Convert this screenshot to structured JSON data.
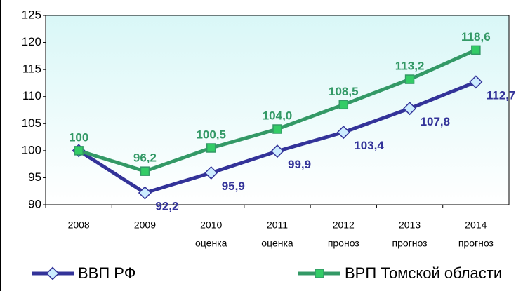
{
  "chart_data": {
    "type": "line",
    "categories": [
      "2008",
      "2009",
      "2010",
      "2011",
      "2012",
      "2013",
      "2014"
    ],
    "category_notes": [
      null,
      null,
      "оценка",
      "оценка",
      "проноз",
      "прогноз",
      "прогноз"
    ],
    "ylim": [
      90,
      125
    ],
    "yticks": [
      90,
      95,
      100,
      105,
      110,
      115,
      120,
      125
    ],
    "series": [
      {
        "name": "ВВП РФ",
        "color": "#333399",
        "marker_fill": "#ccecff",
        "values": [
          100,
          92.2,
          95.9,
          99.9,
          103.4,
          107.8,
          112.7
        ],
        "value_labels": [
          null,
          "92,2",
          "95,9",
          "99,9",
          "103,4",
          "107,8",
          "112,7"
        ]
      },
      {
        "name": "ВРП Томской области",
        "color": "#339966",
        "marker_fill": "#33cc66",
        "values": [
          100,
          96.2,
          100.5,
          104.0,
          108.5,
          113.2,
          118.6
        ],
        "value_labels": [
          "100",
          "96,2",
          "100,5",
          "104,0",
          "108,5",
          "113,2",
          "118,6"
        ]
      }
    ]
  }
}
